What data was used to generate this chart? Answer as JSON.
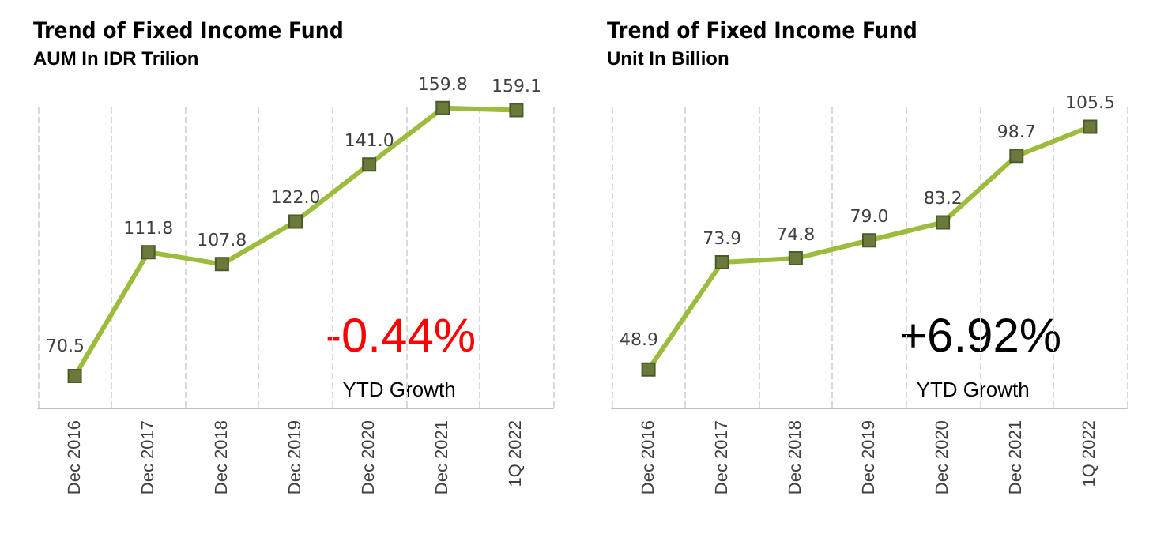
{
  "chart_data": [
    {
      "type": "line",
      "title": "Trend of Fixed Income Fund",
      "subtitle": "AUM In IDR Trilion",
      "categories": [
        "Dec 2016",
        "Dec 2017",
        "Dec 2018",
        "Dec 2019",
        "Dec 2020",
        "Dec 2021",
        "1Q 2022"
      ],
      "series": [
        {
          "color": "#9dbb3c",
          "values": [
            70.5,
            111.8,
            107.8,
            122.0,
            141.0,
            159.8,
            159.1
          ],
          "value_labels": [
            "70.5",
            "111.8",
            "107.8",
            "122.0",
            "141.0",
            "159.8",
            "159.1"
          ]
        }
      ],
      "marker": "square",
      "grid": "x",
      "tick_labels": "x",
      "annotations": [
        "-0.44%",
        "YTD Growth"
      ]
    },
    {
      "type": "line",
      "title": "Trend of Fixed Income Fund",
      "subtitle": "Unit In Billion",
      "categories": [
        "Dec 2016",
        "Dec 2017",
        "Dec 2018",
        "Dec 2019",
        "Dec 2020",
        "Dec 2021",
        "1Q 2022"
      ],
      "series": [
        {
          "color": "#9dbb3c",
          "values": [
            48.9,
            73.9,
            74.8,
            79.0,
            83.2,
            98.7,
            105.5
          ],
          "value_labels": [
            "48.9",
            "73.9",
            "74.8",
            "79.0",
            "83.2",
            "98.7",
            "105.5"
          ]
        }
      ],
      "marker": "square",
      "grid": "x",
      "tick_labels": "x",
      "annotations": [
        "+6.92%",
        "YTD Growth"
      ]
    }
  ]
}
